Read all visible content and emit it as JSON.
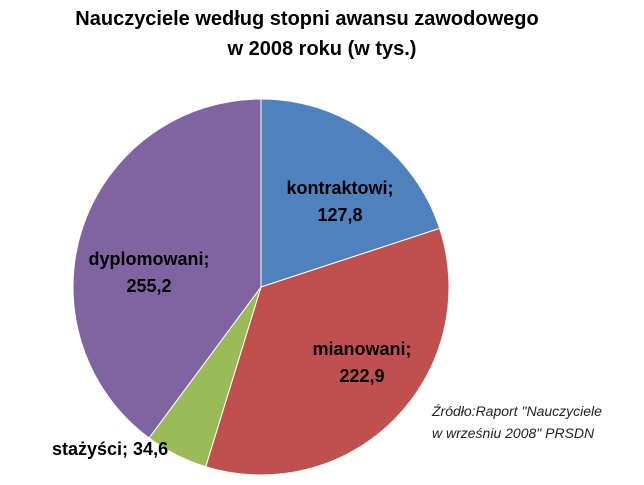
{
  "chart_data": {
    "type": "pie",
    "title_lines": [
      "Nauczyciele według stopni awansu zawodowego",
      "w 2008 roku (w tys.)"
    ],
    "unit": "tys.",
    "start_angle_deg": 0,
    "direction": "clockwise",
    "slices": [
      {
        "name": "kontraktowi",
        "value": 127.8,
        "value_label": "127,8",
        "color": "#4F81BD"
      },
      {
        "name": "mianowani",
        "value": 222.9,
        "value_label": "222,9",
        "color": "#C0504D"
      },
      {
        "name": "stażyści",
        "value": 34.6,
        "value_label": "34,6",
        "color": "#9BBB59"
      },
      {
        "name": "dyplomowani",
        "value": 255.2,
        "value_label": "255,2",
        "color": "#8064A2"
      }
    ],
    "data_label_format": "{name}; {value}"
  },
  "source_note": {
    "line1": "Źródło:Raport \"Nauczyciele",
    "line2": "w wrześniu 2008\" PRSDN"
  }
}
